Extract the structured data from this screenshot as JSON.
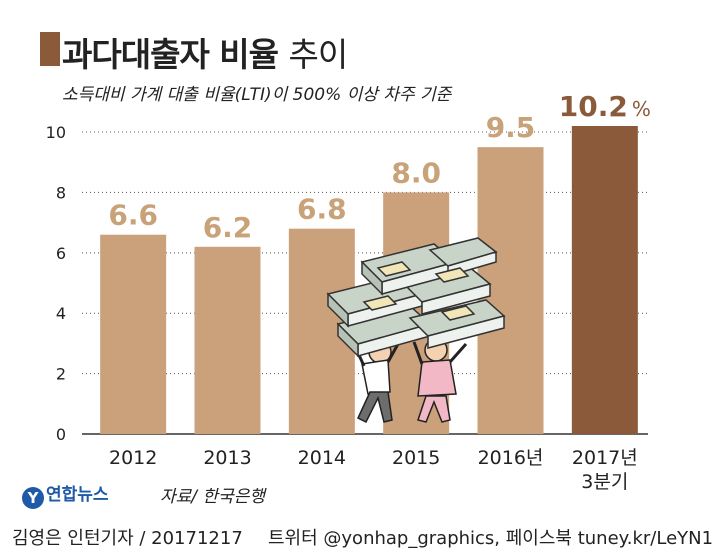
{
  "header": {
    "title_bold": "과다대출자 비율",
    "title_light": "추이",
    "subtitle": "소득대비 가계 대출 비율(LTI)이 500% 이상 차주 기준"
  },
  "footer": {
    "logo": "연합뉴스",
    "logo_mark": "Y",
    "source": "자료/ 한국은행",
    "credit": "김영은 인턴기자 / 20171217",
    "social": "트위터 @yonhap_graphics, 페이스북 tuney.kr/LeYN1"
  },
  "colors": {
    "bar": "#cba17b",
    "bar_highlight": "#8b5a3a",
    "label": "#c8a278",
    "label_highlight": "#8b5a3a"
  },
  "chart_data": {
    "type": "bar",
    "categories": [
      "2012",
      "2013",
      "2014",
      "2015",
      "2016년",
      "2017년\n3분기"
    ],
    "values": [
      6.6,
      6.2,
      6.8,
      8.0,
      9.5,
      10.2
    ],
    "data_labels": [
      "6.6",
      "6.2",
      "6.8",
      "8.0",
      "9.5",
      "10.2"
    ],
    "highlight_unit": "%",
    "highlight_index": 5,
    "yticks": [
      0,
      2,
      4,
      6,
      8,
      10
    ],
    "ylim": [
      0,
      10.2
    ],
    "grid": true,
    "illustration": "stack-of-cash-carriers-icon"
  }
}
